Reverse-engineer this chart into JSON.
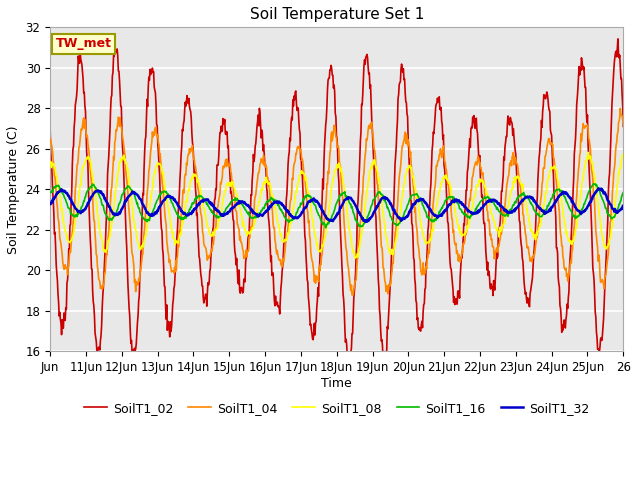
{
  "title": "Soil Temperature Set 1",
  "xlabel": "Time",
  "ylabel": "Soil Temperature (C)",
  "ylim": [
    16,
    32
  ],
  "yticks": [
    16,
    18,
    20,
    22,
    24,
    26,
    28,
    30,
    32
  ],
  "x_tick_labels": [
    "Jun",
    "11Jun",
    "12Jun",
    "13Jun",
    "14Jun",
    "15Jun",
    "16Jun",
    "17Jun",
    "18Jun",
    "19Jun",
    "20Jun",
    "21Jun",
    "22Jun",
    "23Jun",
    "24Jun",
    "25Jun",
    "26"
  ],
  "annotation_text": "TW_met",
  "annotation_bg": "#ffffcc",
  "annotation_border": "#999900",
  "bg_color": "#e8e8e8",
  "legend_items": [
    "SoilT1_02",
    "SoilT1_04",
    "SoilT1_08",
    "SoilT1_16",
    "SoilT1_32"
  ],
  "line_colors": [
    "#cc0000",
    "#ff8800",
    "#ffff00",
    "#00bb00",
    "#0000cc"
  ],
  "line_widths": [
    1.2,
    1.2,
    1.2,
    1.2,
    1.8
  ],
  "n_points": 960,
  "days": 16
}
